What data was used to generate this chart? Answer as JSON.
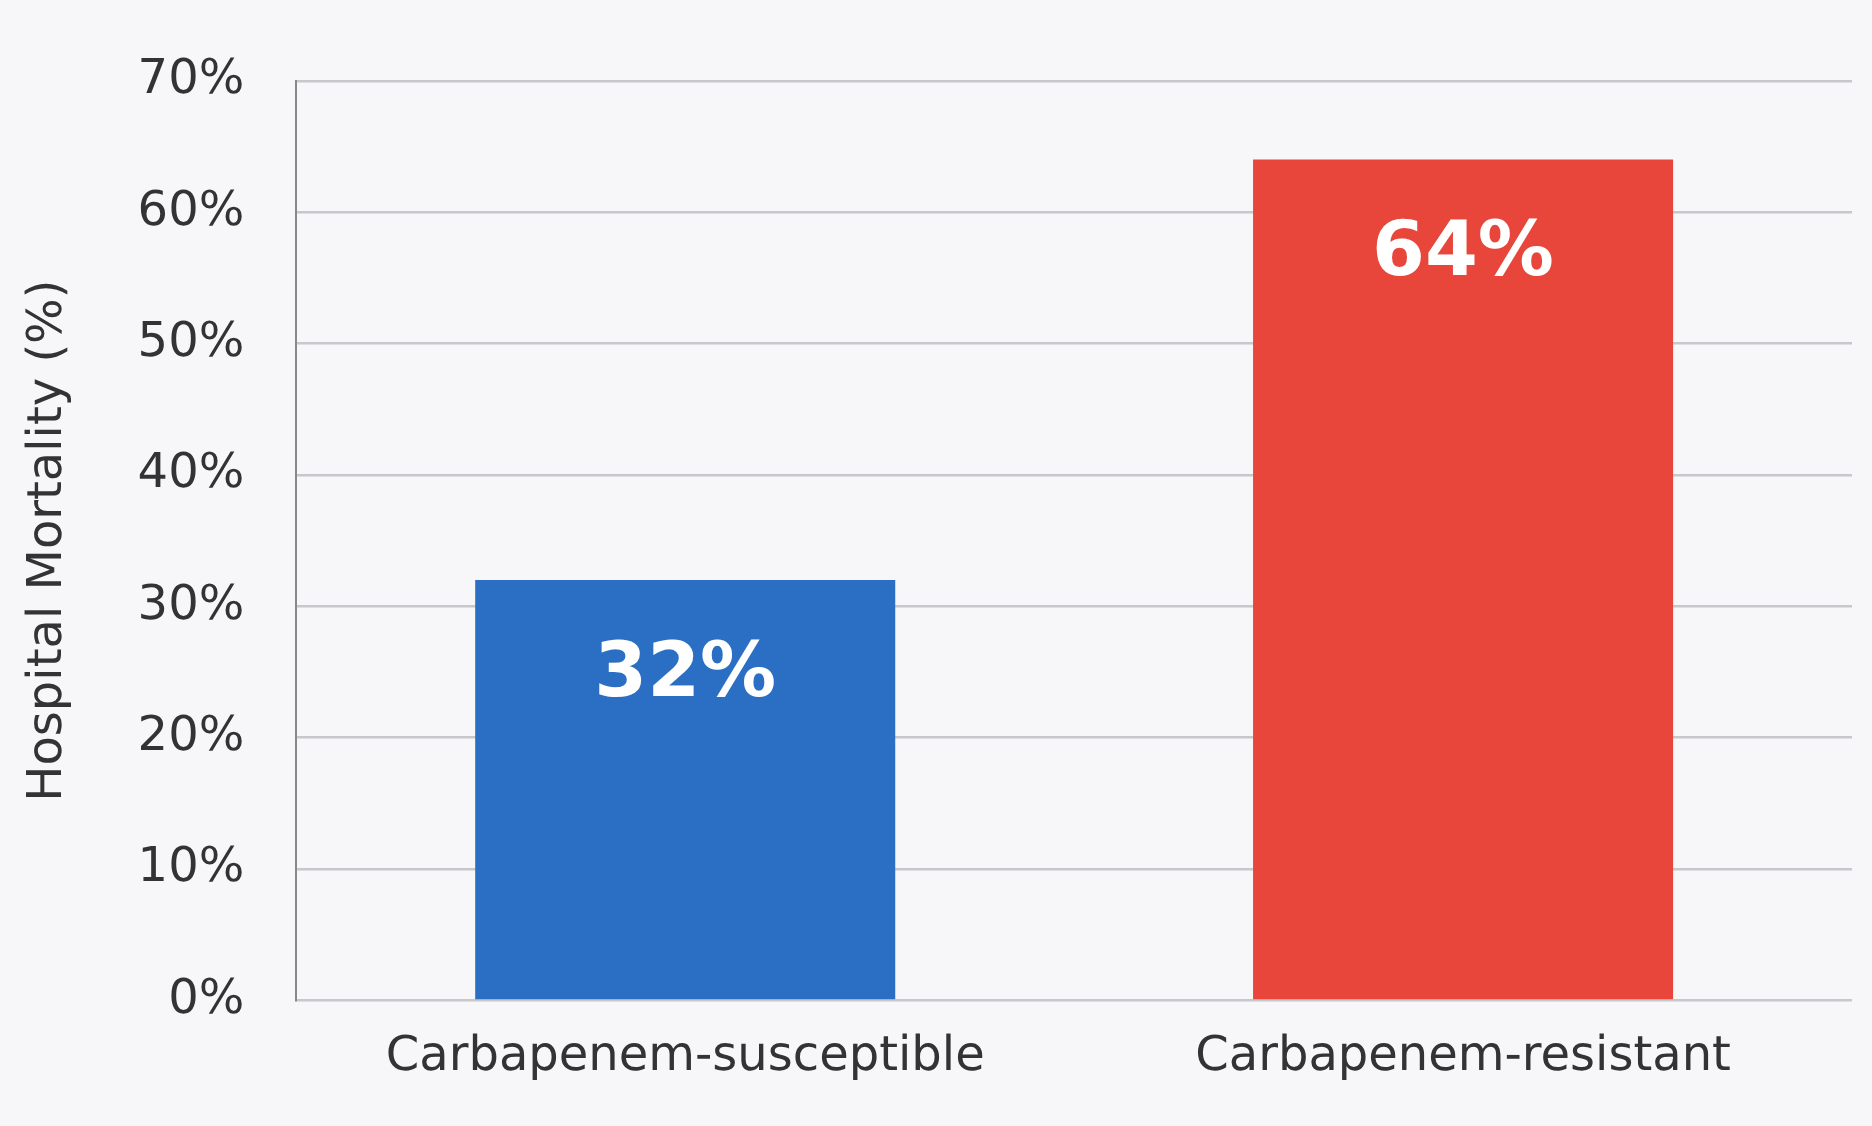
{
  "chart_data": {
    "type": "bar",
    "ylabel": "Hospital Mortality (%)",
    "categories": [
      "Carbapenem-susceptible",
      "Carbapenem-resistant"
    ],
    "values": [
      32,
      64
    ],
    "colors": [
      "#2a6fc4",
      "#e8463b"
    ],
    "data_labels": true,
    "value_labels": [
      "32%",
      "64%"
    ],
    "ylim": [
      0,
      70
    ],
    "yticks": [
      {
        "value": 0,
        "label": "0%"
      },
      {
        "value": 10,
        "label": "10%"
      },
      {
        "value": 20,
        "label": "20%"
      },
      {
        "value": 30,
        "label": "30%"
      },
      {
        "value": 40,
        "label": "40%"
      },
      {
        "value": 50,
        "label": "50%"
      },
      {
        "value": 60,
        "label": "60%"
      },
      {
        "value": 70,
        "label": "70%"
      }
    ],
    "grid": "y",
    "legend": false
  }
}
